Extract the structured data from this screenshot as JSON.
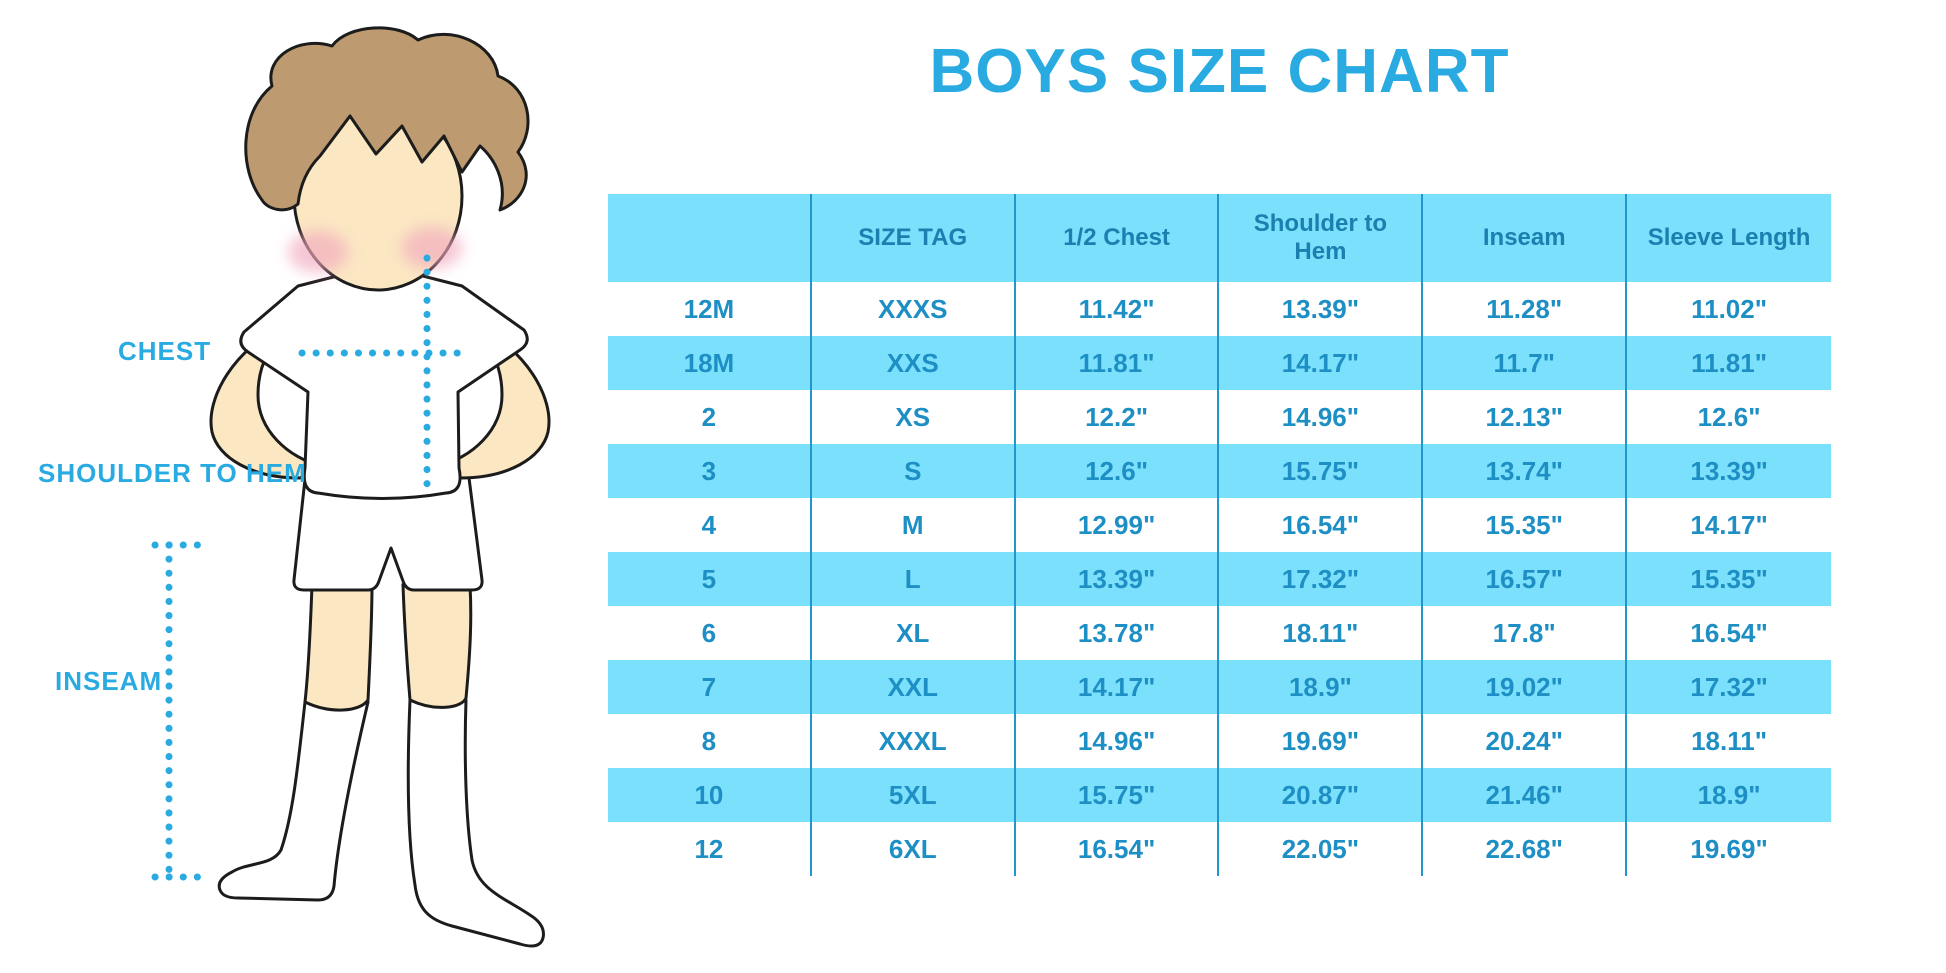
{
  "title": "BOYS SIZE CHART",
  "illustration": {
    "figure": "boy-mannequin-front-view",
    "labels": {
      "chest": "CHEST",
      "shoulder_to_hem": "SHOULDER TO HEM",
      "inseam": "INSEAM"
    }
  },
  "colors": {
    "accent_blue": "#29ABE2",
    "table_header_bg": "#7BE0FB",
    "row_stripe_bg": "#7BE0FB",
    "table_border": "#2397CB",
    "header_text": "#1B7FB0",
    "cell_text": "#1E8FC4",
    "skin": "#FBE7C2",
    "hair": "#BD9A6F",
    "cheek": "#F2A9BF",
    "outline": "#1C1C1C"
  },
  "chart_data": {
    "type": "table",
    "title": "BOYS SIZE CHART",
    "columns": [
      "",
      "SIZE TAG",
      "1/2 Chest",
      "Shoulder to Hem",
      "Inseam",
      "Sleeve Length"
    ],
    "rows": [
      [
        "12M",
        "XXXS",
        "11.42\"",
        "13.39\"",
        "11.28\"",
        "11.02\""
      ],
      [
        "18M",
        "XXS",
        "11.81\"",
        "14.17\"",
        "11.7\"",
        "11.81\""
      ],
      [
        "2",
        "XS",
        "12.2\"",
        "14.96\"",
        "12.13\"",
        "12.6\""
      ],
      [
        "3",
        "S",
        "12.6\"",
        "15.75\"",
        "13.74\"",
        "13.39\""
      ],
      [
        "4",
        "M",
        "12.99\"",
        "16.54\"",
        "15.35\"",
        "14.17\""
      ],
      [
        "5",
        "L",
        "13.39\"",
        "17.32\"",
        "16.57\"",
        "15.35\""
      ],
      [
        "6",
        "XL",
        "13.78\"",
        "18.11\"",
        "17.8\"",
        "16.54\""
      ],
      [
        "7",
        "XXL",
        "14.17\"",
        "18.9\"",
        "19.02\"",
        "17.32\""
      ],
      [
        "8",
        "XXXL",
        "14.96\"",
        "19.69\"",
        "20.24\"",
        "18.11\""
      ],
      [
        "10",
        "5XL",
        "15.75\"",
        "20.87\"",
        "21.46\"",
        "18.9\""
      ],
      [
        "12",
        "6XL",
        "16.54\"",
        "22.05\"",
        "22.68\"",
        "19.69\""
      ]
    ],
    "row_striping": "alternating white and light blue, starting white",
    "units": "inches"
  }
}
